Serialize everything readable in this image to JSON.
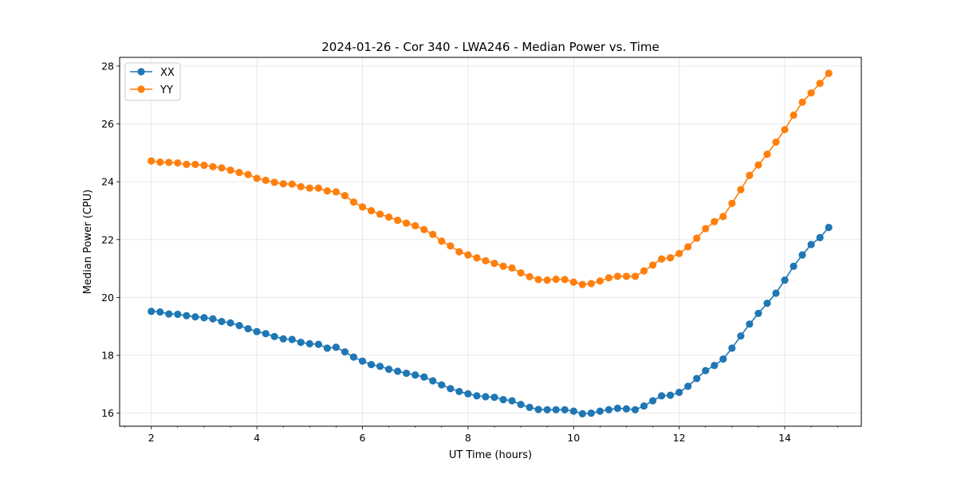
{
  "chart_data": {
    "type": "line",
    "title": "2024-01-26 - Cor 340 - LWA246 - Median Power vs. Time",
    "xlabel": "UT Time (hours)",
    "ylabel": "Median Power (CPU)",
    "xlim": [
      1.4,
      15.45
    ],
    "ylim": [
      15.55,
      28.3
    ],
    "xticks": [
      2,
      4,
      6,
      8,
      10,
      12,
      14
    ],
    "yticks": [
      16,
      18,
      20,
      22,
      24,
      26,
      28
    ],
    "x_minor_step": 0.5,
    "grid": true,
    "legend_position": "upper-left",
    "x": [
      2.0,
      2.167,
      2.333,
      2.5,
      2.667,
      2.833,
      3.0,
      3.167,
      3.333,
      3.5,
      3.667,
      3.833,
      4.0,
      4.167,
      4.333,
      4.5,
      4.667,
      4.833,
      5.0,
      5.167,
      5.333,
      5.5,
      5.667,
      5.833,
      6.0,
      6.167,
      6.333,
      6.5,
      6.667,
      6.833,
      7.0,
      7.167,
      7.333,
      7.5,
      7.667,
      7.833,
      8.0,
      8.167,
      8.333,
      8.5,
      8.667,
      8.833,
      9.0,
      9.167,
      9.333,
      9.5,
      9.667,
      9.833,
      10.0,
      10.167,
      10.333,
      10.5,
      10.667,
      10.833,
      11.0,
      11.167,
      11.333,
      11.5,
      11.667,
      11.833,
      12.0,
      12.167,
      12.333,
      12.5,
      12.667,
      12.833,
      13.0,
      13.167,
      13.333,
      13.5,
      13.667,
      13.833,
      14.0,
      14.167,
      14.333,
      14.5,
      14.667,
      14.833
    ],
    "series": [
      {
        "name": "XX",
        "color": "#1f77b4",
        "values": [
          19.52,
          19.5,
          19.43,
          19.42,
          19.37,
          19.33,
          19.3,
          19.26,
          19.17,
          19.12,
          19.03,
          18.92,
          18.82,
          18.75,
          18.65,
          18.57,
          18.55,
          18.45,
          18.4,
          18.38,
          18.25,
          18.28,
          18.12,
          17.94,
          17.8,
          17.68,
          17.62,
          17.52,
          17.45,
          17.38,
          17.32,
          17.25,
          17.12,
          16.98,
          16.85,
          16.75,
          16.67,
          16.6,
          16.57,
          16.55,
          16.47,
          16.43,
          16.3,
          16.2,
          16.13,
          16.12,
          16.12,
          16.12,
          16.07,
          15.98,
          16.0,
          16.07,
          16.12,
          16.17,
          16.15,
          16.12,
          16.25,
          16.43,
          16.6,
          16.62,
          16.72,
          16.93,
          17.2,
          17.47,
          17.65,
          17.87,
          18.25,
          18.67,
          19.08,
          19.45,
          19.8,
          20.15,
          20.6,
          21.08,
          21.47,
          21.83,
          22.07,
          22.42
        ]
      },
      {
        "name": "YY",
        "color": "#ff7f0e",
        "values": [
          24.72,
          24.68,
          24.67,
          24.65,
          24.6,
          24.6,
          24.57,
          24.52,
          24.48,
          24.4,
          24.32,
          24.25,
          24.12,
          24.05,
          23.98,
          23.93,
          23.92,
          23.83,
          23.78,
          23.78,
          23.68,
          23.65,
          23.52,
          23.3,
          23.13,
          23.0,
          22.88,
          22.78,
          22.67,
          22.57,
          22.48,
          22.35,
          22.18,
          21.95,
          21.78,
          21.58,
          21.47,
          21.37,
          21.27,
          21.18,
          21.08,
          21.02,
          20.85,
          20.72,
          20.62,
          20.6,
          20.63,
          20.62,
          20.53,
          20.45,
          20.48,
          20.57,
          20.68,
          20.73,
          20.73,
          20.73,
          20.92,
          21.12,
          21.33,
          21.37,
          21.52,
          21.75,
          22.05,
          22.38,
          22.62,
          22.8,
          23.25,
          23.73,
          24.22,
          24.58,
          24.95,
          25.37,
          25.8,
          26.3,
          26.75,
          27.07,
          27.4,
          27.75
        ]
      }
    ]
  }
}
